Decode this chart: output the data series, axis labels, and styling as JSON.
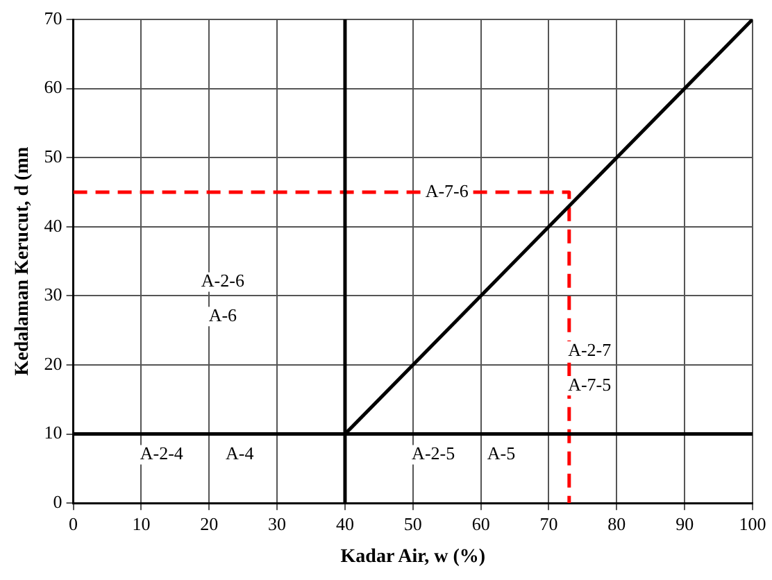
{
  "chart_data": {
    "type": "line",
    "xlabel": "Kadar Air, w (%)",
    "ylabel": "Kedalaman Kerucut, d (mn",
    "xlim": [
      0,
      100
    ],
    "xticks": [
      0,
      10,
      20,
      30,
      40,
      50,
      60,
      70,
      80,
      90,
      100
    ],
    "ylim": [
      0,
      70
    ],
    "yticks": [
      0,
      10,
      20,
      30,
      40,
      50,
      60,
      70
    ],
    "grid": true,
    "legend": false,
    "marker": "none",
    "series": [
      {
        "x": [
          40,
          100
        ],
        "values": [
          10,
          70
        ],
        "color": "#000000",
        "line_style": "solid"
      },
      {
        "x": [
          40,
          40
        ],
        "values": [
          0,
          70
        ],
        "color": "#000000",
        "line_style": "solid"
      },
      {
        "x": [
          0,
          100
        ],
        "values": [
          10,
          10
        ],
        "color": "#000000",
        "line_style": "solid"
      },
      {
        "x": [
          0,
          73,
          73
        ],
        "values": [
          45,
          45,
          0
        ],
        "color": "#ff0000",
        "line_style": "dashed"
      }
    ],
    "annotations": [
      {
        "text": "A-2-4",
        "x": 13,
        "y": 7
      },
      {
        "text": "A-4",
        "x": 24.5,
        "y": 7
      },
      {
        "text": "A-2-5",
        "x": 53,
        "y": 7
      },
      {
        "text": "A-5",
        "x": 63,
        "y": 7
      },
      {
        "text": "A-2-6",
        "x": 22,
        "y": 32
      },
      {
        "text": "A-6",
        "x": 22,
        "y": 27
      },
      {
        "text": "A-7-6",
        "x": 55,
        "y": 45
      },
      {
        "text": "A-2-7",
        "x": 76,
        "y": 22
      },
      {
        "text": "A-7-5",
        "x": 76,
        "y": 17
      }
    ]
  }
}
